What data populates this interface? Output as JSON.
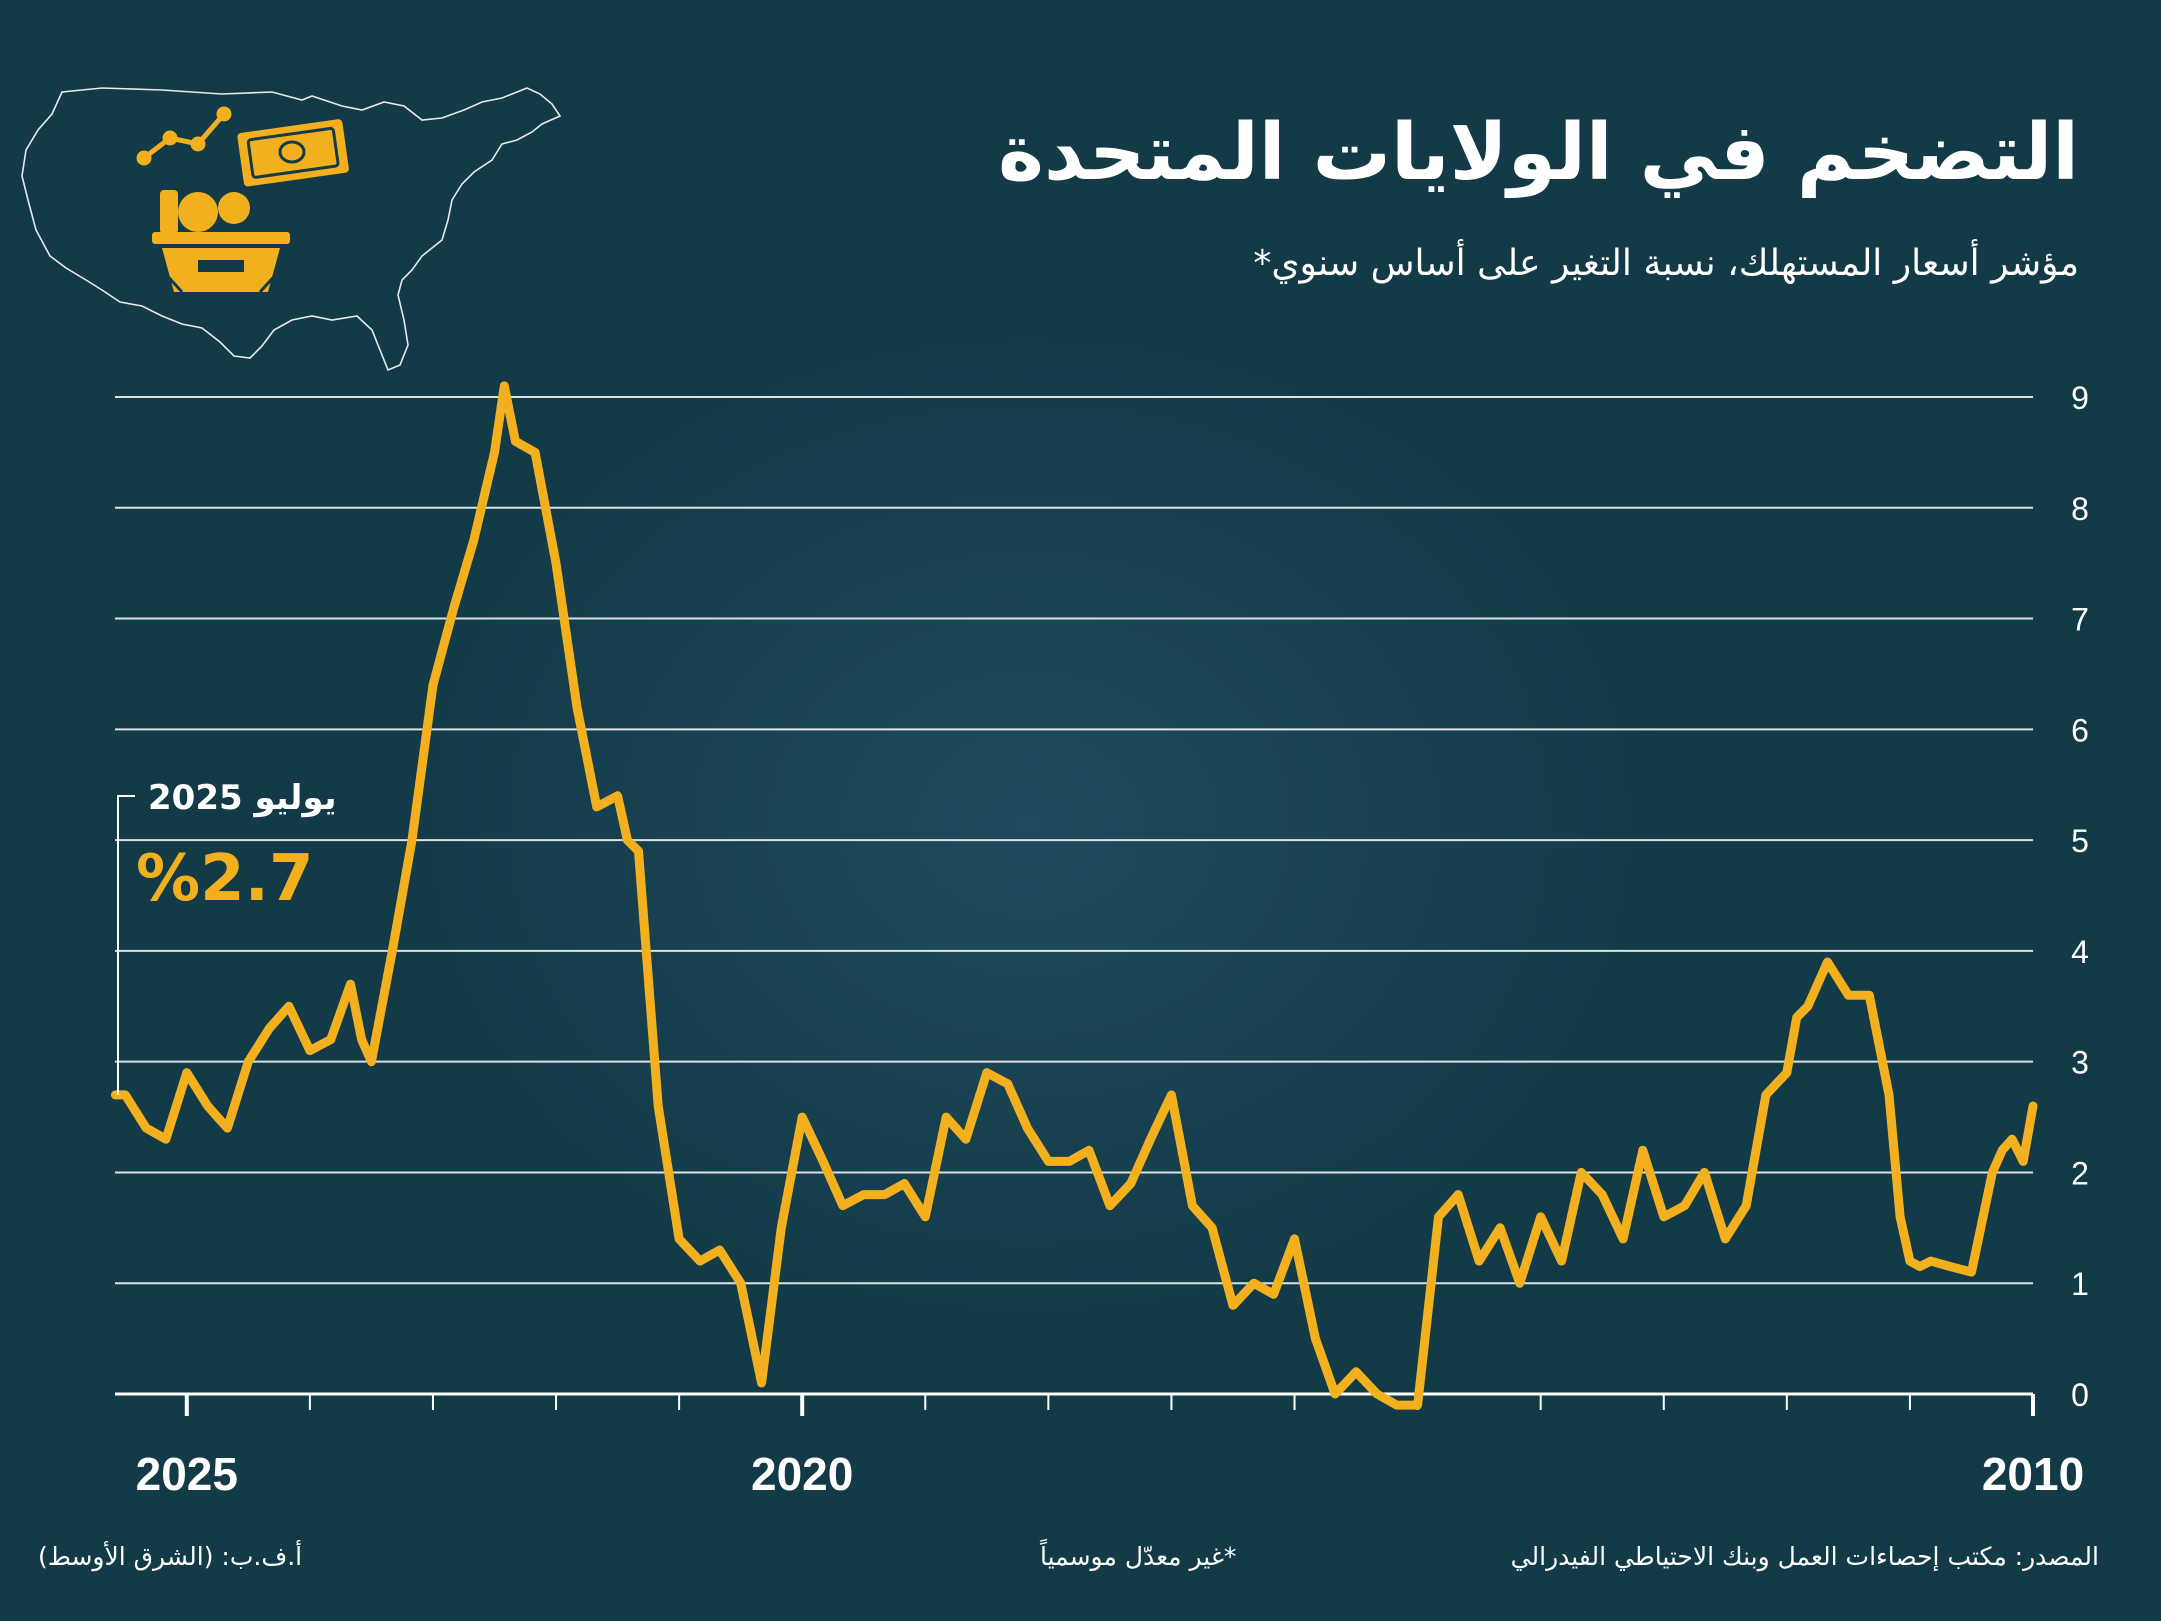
{
  "title": "التضخم في الولايات المتحدة",
  "subtitle": "مؤشر أسعار المستهلك، نسبة التغير على أساس سنوي*",
  "annotation": {
    "label": "يوليو 2025",
    "value": "%2.7"
  },
  "footer": {
    "source": "المصدر: مكتب إحصاءات العمل وبنك الاحتياطي الفيدرالي",
    "note": "*غير معدّل موسمياً",
    "credit": "أ.ف.ب: (الشرق الأوسط)"
  },
  "colors": {
    "background": "#133a47",
    "line": "#f2b01e",
    "grid": "#ffffff",
    "text": "#ffffff"
  },
  "icons": [
    "us-map-icon",
    "money-icon",
    "trend-icon",
    "shopping-basket-icon"
  ],
  "chart_data": {
    "type": "line",
    "x_direction": "reversed",
    "x_range": [
      2010.0,
      2025.5833
    ],
    "ylim": [
      0,
      9
    ],
    "yticks": [
      0,
      1,
      2,
      3,
      4,
      5,
      6,
      7,
      8,
      9
    ],
    "xtick_labels": [
      "2010",
      "2020",
      "2025"
    ],
    "grid": true,
    "series": [
      {
        "x": [
          2010.0,
          2010.08,
          2010.17,
          2010.25,
          2010.33,
          2010.5,
          2010.67,
          2010.83,
          2010.92,
          2011.0,
          2011.08,
          2011.17,
          2011.33,
          2011.5,
          2011.67,
          2011.83,
          2011.92,
          2012.0,
          2012.17,
          2012.33,
          2012.5,
          2012.67,
          2012.83,
          2013.0,
          2013.17,
          2013.33,
          2013.5,
          2013.67,
          2013.83,
          2014.0,
          2014.17,
          2014.33,
          2014.5,
          2014.67,
          2014.83,
          2015.0,
          2015.17,
          2015.33,
          2015.5,
          2015.67,
          2015.83,
          2016.0,
          2016.17,
          2016.33,
          2016.5,
          2016.67,
          2016.83,
          2017.0,
          2017.17,
          2017.33,
          2017.5,
          2017.67,
          2017.83,
          2018.0,
          2018.17,
          2018.33,
          2018.5,
          2018.67,
          2018.83,
          2019.0,
          2019.17,
          2019.33,
          2019.5,
          2019.67,
          2019.83,
          2020.0,
          2020.17,
          2020.33,
          2020.5,
          2020.67,
          2020.83,
          2021.0,
          2021.17,
          2021.33,
          2021.42,
          2021.5,
          2021.67,
          2021.83,
          2022.0,
          2022.17,
          2022.33,
          2022.42,
          2022.5,
          2022.67,
          2022.83,
          2023.0,
          2023.17,
          2023.33,
          2023.5,
          2023.58,
          2023.67,
          2023.83,
          2024.0,
          2024.17,
          2024.33,
          2024.5,
          2024.67,
          2024.83,
          2025.0,
          2025.17,
          2025.33,
          2025.5,
          2025.58
        ],
        "y": [
          2.6,
          2.1,
          2.3,
          2.2,
          2.0,
          1.1,
          1.15,
          1.2,
          1.15,
          1.2,
          1.6,
          2.7,
          3.6,
          3.6,
          3.9,
          3.5,
          3.4,
          2.9,
          2.7,
          1.7,
          1.4,
          2.0,
          1.7,
          1.6,
          2.2,
          1.4,
          1.8,
          2.0,
          1.2,
          1.6,
          1.0,
          1.5,
          1.2,
          1.8,
          1.6,
          -0.1,
          -0.1,
          0.0,
          0.2,
          0.0,
          0.5,
          1.4,
          0.9,
          1.0,
          0.8,
          1.5,
          1.7,
          2.7,
          2.3,
          1.9,
          1.7,
          2.2,
          2.1,
          2.1,
          2.4,
          2.8,
          2.9,
          2.3,
          2.5,
          1.6,
          1.9,
          1.8,
          1.8,
          1.7,
          2.1,
          2.5,
          1.5,
          0.1,
          1.0,
          1.3,
          1.2,
          1.4,
          2.6,
          4.9,
          5.0,
          5.4,
          5.3,
          6.2,
          7.5,
          8.5,
          8.6,
          9.1,
          8.5,
          7.7,
          7.1,
          6.4,
          5.0,
          4.0,
          3.0,
          3.2,
          3.7,
          3.2,
          3.1,
          3.5,
          3.3,
          3.0,
          2.4,
          2.6,
          2.9,
          2.3,
          2.4,
          2.7,
          2.7
        ]
      }
    ]
  }
}
